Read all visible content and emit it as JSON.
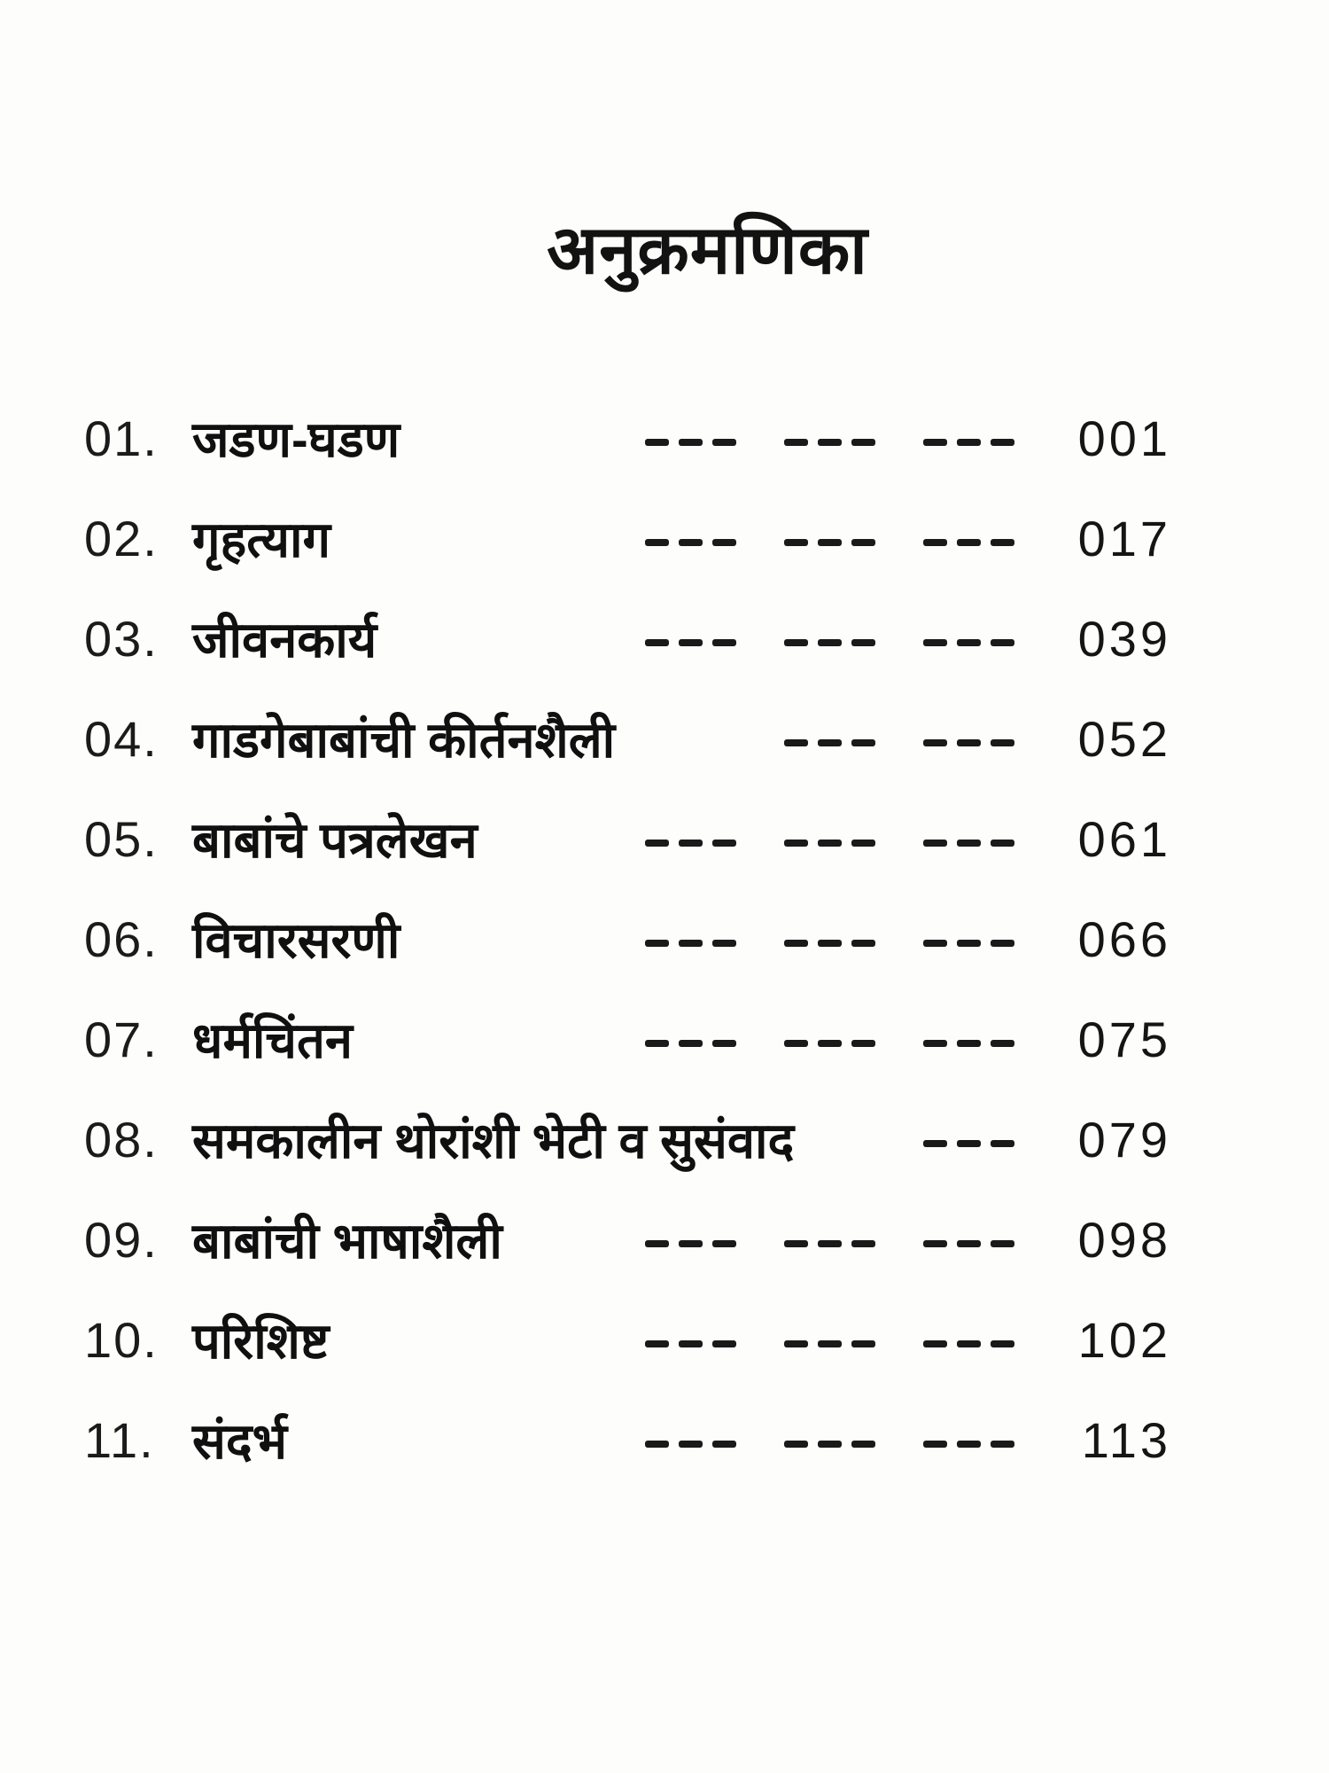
{
  "page": {
    "title": "अनुक्रमणिका",
    "entries": [
      {
        "num": "01.",
        "title": "जडण-घडण",
        "dash_groups": 3,
        "page": "001"
      },
      {
        "num": "02.",
        "title": "गृहत्याग",
        "dash_groups": 3,
        "page": "017"
      },
      {
        "num": "03.",
        "title": "जीवनकार्य",
        "dash_groups": 3,
        "page": "039"
      },
      {
        "num": "04.",
        "title": "गाडगेबाबांची कीर्तनशैली",
        "dash_groups": 2,
        "page": "052"
      },
      {
        "num": "05.",
        "title": "बाबांचे पत्रलेखन",
        "dash_groups": 3,
        "page": "061"
      },
      {
        "num": "06.",
        "title": "विचारसरणी",
        "dash_groups": 3,
        "page": "066"
      },
      {
        "num": "07.",
        "title": "धर्मचिंतन",
        "dash_groups": 3,
        "page": "075"
      },
      {
        "num": "08.",
        "title": "समकालीन थोरांशी भेटी व सुसंवाद",
        "dash_groups": 1,
        "page": "079"
      },
      {
        "num": "09.",
        "title": "बाबांची भाषाशैली",
        "dash_groups": 3,
        "page": "098"
      },
      {
        "num": "10.",
        "title": "परिशिष्ट",
        "dash_groups": 3,
        "page": "102"
      },
      {
        "num": "11.",
        "title": "संदर्भ",
        "dash_groups": 3,
        "page": "113"
      }
    ]
  },
  "colors": {
    "ink": "#161616",
    "paper": "#fdfdfc"
  }
}
